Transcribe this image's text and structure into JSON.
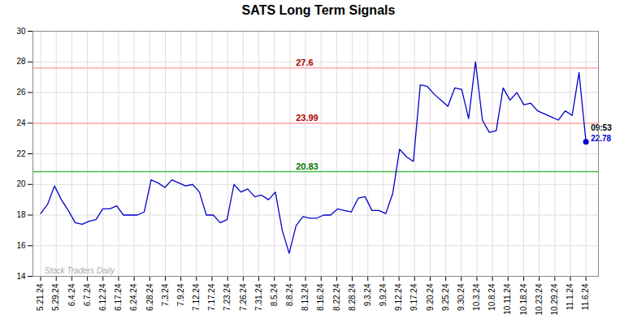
{
  "chart_data": {
    "type": "line",
    "title": "SATS Long Term Signals",
    "values": [
      18.1,
      18.7,
      19.9,
      19.0,
      18.3,
      17.5,
      17.4,
      17.6,
      17.7,
      18.4,
      18.4,
      18.6,
      18.0,
      18.0,
      18.0,
      18.2,
      20.3,
      20.1,
      19.8,
      20.3,
      20.1,
      19.9,
      20.0,
      19.5,
      18.0,
      18.0,
      17.5,
      17.7,
      20.0,
      19.5,
      19.7,
      19.2,
      19.3,
      19.0,
      19.5,
      17.0,
      15.5,
      17.3,
      17.9,
      17.8,
      17.8,
      18.0,
      18.0,
      18.4,
      18.3,
      18.2,
      19.1,
      19.2,
      18.3,
      18.3,
      18.1,
      19.4,
      22.3,
      21.8,
      21.5,
      26.5,
      26.4,
      25.9,
      25.5,
      25.1,
      26.3,
      26.2,
      24.3,
      28.0,
      24.2,
      23.4,
      23.5,
      26.3,
      25.5,
      26.0,
      25.2,
      25.3,
      24.8,
      24.6,
      24.4,
      24.2,
      24.8,
      24.5,
      27.3,
      22.78
    ],
    "color": "#0000cc",
    "xlim": [
      -0.5,
      35.8
    ],
    "xticks": [
      {
        "value": 0,
        "label": "5.21.24"
      },
      {
        "value": 1,
        "label": "5.29.24"
      },
      {
        "value": 2,
        "label": "6.4.24"
      },
      {
        "value": 3,
        "label": "6.7.24"
      },
      {
        "value": 4,
        "label": "6.12.24"
      },
      {
        "value": 5,
        "label": "6.17.24"
      },
      {
        "value": 6,
        "label": "6.24.24"
      },
      {
        "value": 7,
        "label": "6.28.24"
      },
      {
        "value": 8,
        "label": "7.3.24"
      },
      {
        "value": 9,
        "label": "7.9.24"
      },
      {
        "value": 10,
        "label": "7.12.24"
      },
      {
        "value": 11,
        "label": "7.17.24"
      },
      {
        "value": 12,
        "label": "7.23.24"
      },
      {
        "value": 13,
        "label": "7.26.24"
      },
      {
        "value": 14,
        "label": "7.31.24"
      },
      {
        "value": 15,
        "label": "8.5.24"
      },
      {
        "value": 16,
        "label": "8.8.24"
      },
      {
        "value": 17,
        "label": "8.13.24"
      },
      {
        "value": 18,
        "label": "8.16.24"
      },
      {
        "value": 19,
        "label": "8.22.24"
      },
      {
        "value": 20,
        "label": "8.28.24"
      },
      {
        "value": 21,
        "label": "9.3.24"
      },
      {
        "value": 22,
        "label": "9.9.24"
      },
      {
        "value": 23,
        "label": "9.12.24"
      },
      {
        "value": 24,
        "label": "9.17.24"
      },
      {
        "value": 25,
        "label": "9.20.24"
      },
      {
        "value": 26,
        "label": "9.25.24"
      },
      {
        "value": 27,
        "label": "9.30.24"
      },
      {
        "value": 28,
        "label": "10.3.24"
      },
      {
        "value": 29,
        "label": "10.8.24"
      },
      {
        "value": 30,
        "label": "10.11.24"
      },
      {
        "value": 31,
        "label": "10.18.24"
      },
      {
        "value": 32,
        "label": "10.23.24"
      },
      {
        "value": 33,
        "label": "10.29.24"
      },
      {
        "value": 34,
        "label": "11.1.24"
      },
      {
        "value": 35,
        "label": "11.6.24"
      }
    ],
    "ylim": [
      14,
      30
    ],
    "yticks": [
      14,
      16,
      18,
      20,
      22,
      24,
      26,
      28,
      30
    ],
    "grid": true,
    "hlines": [
      {
        "value": 27.6,
        "label": "27.6",
        "color": "#ffaaaa",
        "label_color": "#aa0000"
      },
      {
        "value": 23.99,
        "label": "23.99",
        "color": "#ffaaaa",
        "label_color": "#aa0000"
      },
      {
        "value": 20.83,
        "label": "20.83",
        "color": "#44bb44",
        "label_color": "#007700"
      }
    ],
    "last_point_labels": [
      "09:53",
      "22.78"
    ],
    "watermark": "Stock Traders Daily"
  }
}
